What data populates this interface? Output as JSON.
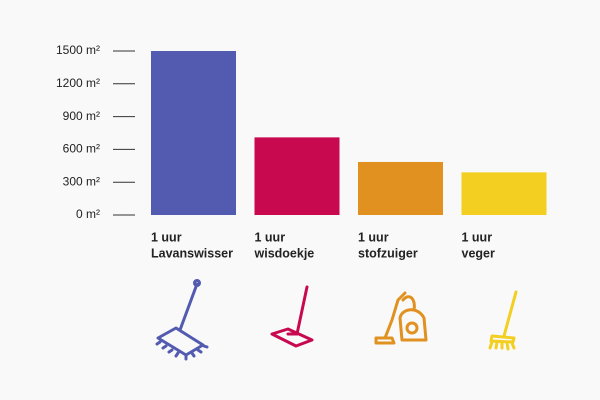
{
  "chart_data": {
    "type": "bar",
    "categories": [
      [
        "1 uur",
        "Lavanswisser"
      ],
      [
        "1 uur",
        "wisdoekje"
      ],
      [
        "1 uur",
        "stofzuiger"
      ],
      [
        "1 uur",
        "veger"
      ]
    ],
    "values": [
      1500,
      710,
      485,
      390
    ],
    "colors": [
      "#525bb0",
      "#c8094f",
      "#e0911f",
      "#f2cf21"
    ],
    "ylim": [
      0,
      1500
    ],
    "yticks": [
      {
        "value": 0,
        "label": "0 m²"
      },
      {
        "value": 300,
        "label": "300 m²"
      },
      {
        "value": 600,
        "label": "600 m²"
      },
      {
        "value": 900,
        "label": "900 m²"
      },
      {
        "value": 1200,
        "label": "1200 m²"
      },
      {
        "value": 1500,
        "label": "1500 m²"
      }
    ]
  }
}
